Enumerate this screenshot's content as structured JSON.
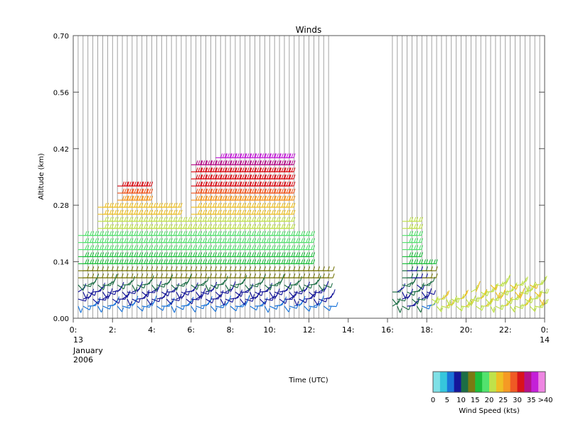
{
  "chart_data": {
    "type": "wind-barb time-height plot",
    "title": "Winds",
    "xlabel": "Time (UTC)",
    "ylabel": "Altitude (km)",
    "xlim": [
      0,
      24
    ],
    "ylim": [
      0.0,
      0.7
    ],
    "y_ticks": [
      "0.00",
      "0.14",
      "0.28",
      "0.42",
      "0.56",
      "0.70"
    ],
    "x_ticks": [
      {
        "t": 0,
        "label": "0:"
      },
      {
        "t": 2,
        "label": "2:"
      },
      {
        "t": 4,
        "label": "4:"
      },
      {
        "t": 6,
        "label": "6:"
      },
      {
        "t": 8,
        "label": "8:"
      },
      {
        "t": 10,
        "label": "10:"
      },
      {
        "t": 12,
        "label": "12:"
      },
      {
        "t": 14,
        "label": "14:"
      },
      {
        "t": 16,
        "label": "16:"
      },
      {
        "t": 18,
        "label": "18:"
      },
      {
        "t": 20,
        "label": "20:"
      },
      {
        "t": 22,
        "label": "22:"
      },
      {
        "t": 24,
        "label": "0:"
      }
    ],
    "date_start": {
      "day": "13",
      "month": "January",
      "year": "2006"
    },
    "date_end": {
      "day": "14"
    },
    "grid": "vertical lines at each profile time",
    "profile_times_segment1": {
      "start": 0.25,
      "end": 13.0,
      "step": 0.25
    },
    "profile_times_segment2": {
      "start": 16.25,
      "end": 23.75,
      "step": 0.25
    },
    "colorbar": {
      "title": "Wind Speed (kts)",
      "labels": [
        "0",
        "5",
        "10",
        "15",
        "20",
        "25",
        "30",
        "35",
        ">40"
      ],
      "colors": [
        "#7fe0e6",
        "#36c6dc",
        "#1a74d9",
        "#15169a",
        "#1c6e45",
        "#7a7a12",
        "#1cbf3c",
        "#52e26e",
        "#bfe24a",
        "#eec024",
        "#f59a24",
        "#ef5a24",
        "#d9131b",
        "#b5118a",
        "#c420d8",
        "#ee86e2"
      ]
    },
    "speed_profile_kts": [
      {
        "alt": 0.03,
        "kts": 6
      },
      {
        "alt": 0.06,
        "kts": 9
      },
      {
        "alt": 0.09,
        "kts": 12
      },
      {
        "alt": 0.13,
        "kts": 15
      },
      {
        "alt": 0.17,
        "kts": 18
      },
      {
        "alt": 0.21,
        "kts": 20
      },
      {
        "alt": 0.25,
        "kts": 22
      },
      {
        "alt": 0.28,
        "kts": 24
      },
      {
        "alt": 0.32,
        "kts": 30
      },
      {
        "alt": 0.36,
        "kts": 32
      },
      {
        "alt": 0.4,
        "kts": 37
      }
    ],
    "envelope": [
      {
        "t0": 0.25,
        "t1": 1.0,
        "top": 0.21
      },
      {
        "t0": 1.25,
        "t1": 2.0,
        "top": 0.28
      },
      {
        "t0": 2.25,
        "t1": 3.5,
        "top": 0.34
      },
      {
        "t0": 3.75,
        "t1": 5.0,
        "top": 0.28
      },
      {
        "t0": 5.25,
        "t1": 5.75,
        "top": 0.25
      },
      {
        "t0": 6.0,
        "t1": 7.0,
        "top": 0.38
      },
      {
        "t0": 7.25,
        "t1": 8.0,
        "top": 0.41
      },
      {
        "t0": 8.25,
        "t1": 10.75,
        "top": 0.41
      },
      {
        "t0": 11.0,
        "t1": 11.75,
        "top": 0.21
      },
      {
        "t0": 12.0,
        "t1": 12.75,
        "top": 0.13
      },
      {
        "t0": 13.0,
        "t1": 13.0,
        "top": 0.05
      },
      {
        "t0": 16.25,
        "t1": 16.5,
        "top": 0.07
      },
      {
        "t0": 16.75,
        "t1": 17.25,
        "top": 0.25
      },
      {
        "t0": 17.5,
        "t1": 18.0,
        "top": 0.14
      },
      {
        "t0": 18.25,
        "t1": 20.0,
        "top": 0.06
      },
      {
        "t0": 20.25,
        "t1": 21.0,
        "top": 0.07
      },
      {
        "t0": 21.25,
        "t1": 23.75,
        "top": 0.09
      }
    ]
  }
}
